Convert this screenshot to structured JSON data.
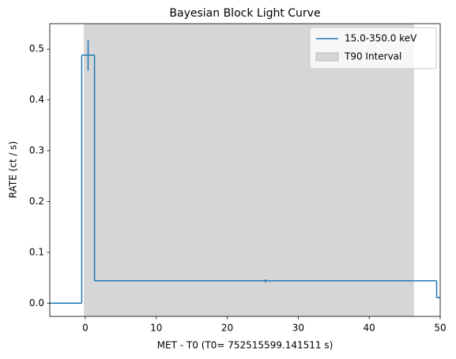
{
  "chart_data": {
    "type": "step",
    "title": "Bayesian Block Light Curve",
    "x_label": "MET - T0 (T0= 752515599.141511 s)",
    "y_label": "RATE (ct / s)",
    "xlim": [
      -5,
      50
    ],
    "ylim": [
      -0.026,
      0.55
    ],
    "xticks": [
      0,
      10,
      20,
      30,
      40,
      50
    ],
    "yticks": [
      {
        "value": 0,
        "label": "0.0"
      },
      0.1,
      0.2,
      0.3,
      0.4,
      0.5
    ],
    "series": [
      {
        "name": "15.0-350.0 keV",
        "color": "#1f77b4",
        "edges": [
          -5,
          -0.5,
          1.3,
          49.5,
          50
        ],
        "values": [
          0,
          0.488,
          0.044,
          0.011
        ],
        "errorbars": [
          {
            "x": 0.4,
            "y": 0.488,
            "err": 0.03
          },
          {
            "x": 25.4,
            "y": 0.044,
            "err": 0.003
          }
        ]
      }
    ],
    "interval": {
      "name": "T90 Interval",
      "start": -0.2,
      "end": 46.3,
      "color": "#d6d6d6"
    },
    "legend": "upper right"
  }
}
